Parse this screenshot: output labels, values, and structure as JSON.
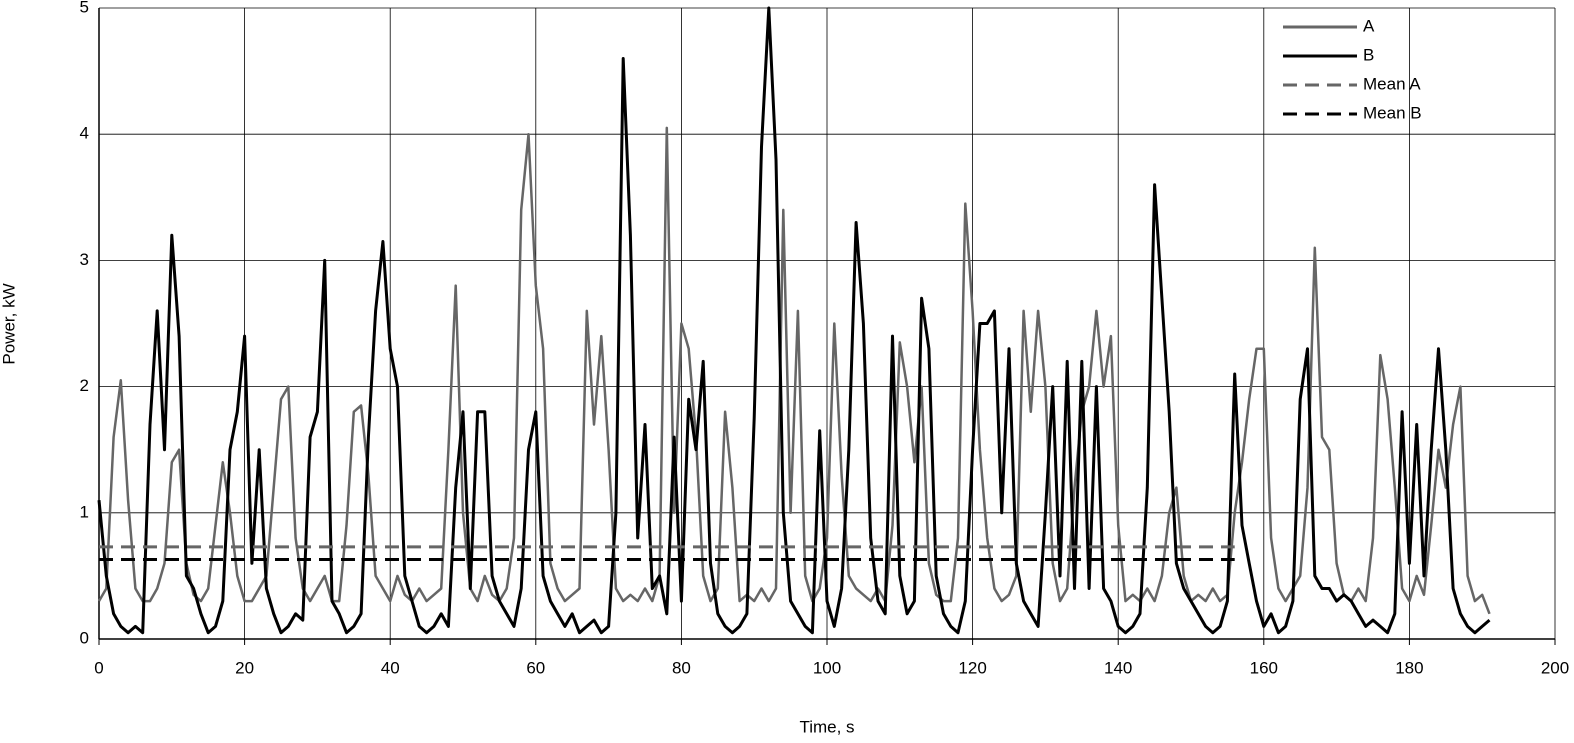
{
  "chart_data": {
    "type": "line",
    "xlabel": "Time, s",
    "ylabel": "Power, kW",
    "x": [
      0,
      1,
      2,
      3,
      4,
      5,
      6,
      7,
      8,
      9,
      10,
      11,
      12,
      13,
      14,
      15,
      16,
      17,
      18,
      19,
      20,
      21,
      22,
      23,
      24,
      25,
      26,
      27,
      28,
      29,
      30,
      31,
      32,
      33,
      34,
      35,
      36,
      37,
      38,
      39,
      40,
      41,
      42,
      43,
      44,
      45,
      46,
      47,
      48,
      49,
      50,
      51,
      52,
      53,
      54,
      55,
      56,
      57,
      58,
      59,
      60,
      61,
      62,
      63,
      64,
      65,
      66,
      67,
      68,
      69,
      70,
      71,
      72,
      73,
      74,
      75,
      76,
      77,
      78,
      79,
      80,
      81,
      82,
      83,
      84,
      85,
      86,
      87,
      88,
      89,
      90,
      91,
      92,
      93,
      94,
      95,
      96,
      97,
      98,
      99,
      100,
      101,
      102,
      103,
      104,
      105,
      106,
      107,
      108,
      109,
      110,
      111,
      112,
      113,
      114,
      115,
      116,
      117,
      118,
      119,
      120,
      121,
      122,
      123,
      124,
      125,
      126,
      127,
      128,
      129,
      130,
      131,
      132,
      133,
      134,
      135,
      136,
      137,
      138,
      139,
      140,
      141,
      142,
      143,
      144,
      145,
      146,
      147,
      148,
      149,
      150,
      151,
      152,
      153,
      154,
      155,
      156,
      157,
      158,
      159,
      160,
      161,
      162,
      163,
      164,
      165,
      166,
      167,
      168,
      169,
      170,
      171,
      172,
      173,
      174,
      175,
      176,
      177,
      178,
      179,
      180,
      181,
      182,
      183,
      184,
      185,
      186,
      187,
      188,
      189,
      190,
      191
    ],
    "series": [
      {
        "name": "A",
        "color": "#666666",
        "dash": false,
        "values": [
          0.3,
          0.4,
          1.6,
          2.05,
          1.1,
          0.4,
          0.3,
          0.3,
          0.4,
          0.6,
          1.4,
          1.5,
          0.6,
          0.35,
          0.3,
          0.4,
          0.9,
          1.4,
          1.0,
          0.5,
          0.3,
          0.3,
          0.4,
          0.5,
          1.2,
          1.9,
          2.0,
          0.8,
          0.4,
          0.3,
          0.4,
          0.5,
          0.3,
          0.3,
          0.9,
          1.8,
          1.85,
          1.3,
          0.5,
          0.4,
          0.3,
          0.5,
          0.35,
          0.3,
          0.4,
          0.3,
          0.35,
          0.4,
          1.5,
          2.8,
          1.0,
          0.4,
          0.3,
          0.5,
          0.35,
          0.3,
          0.4,
          0.8,
          3.4,
          4.0,
          2.8,
          2.3,
          0.6,
          0.4,
          0.3,
          0.35,
          0.4,
          2.6,
          1.7,
          2.4,
          1.5,
          0.4,
          0.3,
          0.35,
          0.3,
          0.4,
          0.3,
          0.5,
          4.05,
          1.0,
          2.5,
          2.3,
          1.6,
          0.5,
          0.3,
          0.4,
          1.8,
          1.2,
          0.3,
          0.35,
          0.3,
          0.4,
          0.3,
          0.4,
          3.4,
          1.0,
          2.6,
          0.5,
          0.3,
          0.4,
          0.8,
          2.5,
          1.3,
          0.5,
          0.4,
          0.35,
          0.3,
          0.4,
          0.3,
          0.9,
          2.35,
          2.0,
          1.4,
          2.0,
          0.6,
          0.35,
          0.3,
          0.3,
          0.8,
          3.45,
          2.6,
          1.5,
          0.8,
          0.4,
          0.3,
          0.35,
          0.5,
          2.6,
          1.8,
          2.6,
          2.0,
          0.6,
          0.3,
          0.4,
          1.2,
          1.8,
          2.0,
          2.6,
          2.0,
          2.4,
          0.9,
          0.3,
          0.35,
          0.3,
          0.4,
          0.3,
          0.5,
          1.0,
          1.2,
          0.5,
          0.3,
          0.35,
          0.3,
          0.4,
          0.3,
          0.35,
          1.0,
          1.4,
          1.9,
          2.3,
          2.3,
          0.8,
          0.4,
          0.3,
          0.4,
          0.5,
          1.2,
          3.1,
          1.6,
          1.5,
          0.6,
          0.35,
          0.3,
          0.4,
          0.3,
          0.8,
          2.25,
          1.9,
          1.2,
          0.4,
          0.3,
          0.5,
          0.35,
          0.9,
          1.5,
          1.2,
          1.7,
          2.0,
          0.5,
          0.3,
          0.35,
          0.2
        ]
      },
      {
        "name": "B",
        "color": "#000000",
        "dash": false,
        "values": [
          1.1,
          0.5,
          0.2,
          0.1,
          0.05,
          0.1,
          0.05,
          1.7,
          2.6,
          1.5,
          3.2,
          2.4,
          0.5,
          0.4,
          0.2,
          0.05,
          0.1,
          0.3,
          1.5,
          1.8,
          2.4,
          0.6,
          1.5,
          0.4,
          0.2,
          0.05,
          0.1,
          0.2,
          0.15,
          1.6,
          1.8,
          3.0,
          0.3,
          0.2,
          0.05,
          0.1,
          0.2,
          1.6,
          2.6,
          3.15,
          2.3,
          2.0,
          0.5,
          0.3,
          0.1,
          0.05,
          0.1,
          0.2,
          0.1,
          1.2,
          1.8,
          0.4,
          1.8,
          1.8,
          0.5,
          0.3,
          0.2,
          0.1,
          0.4,
          1.5,
          1.8,
          0.5,
          0.3,
          0.2,
          0.1,
          0.2,
          0.05,
          0.1,
          0.15,
          0.05,
          0.1,
          1.0,
          4.6,
          3.2,
          0.8,
          1.7,
          0.4,
          0.5,
          0.2,
          1.6,
          0.3,
          1.9,
          1.5,
          2.2,
          0.6,
          0.2,
          0.1,
          0.05,
          0.1,
          0.2,
          1.75,
          3.9,
          5.0,
          3.8,
          1.0,
          0.3,
          0.2,
          0.1,
          0.05,
          1.65,
          0.3,
          0.1,
          0.4,
          1.5,
          3.3,
          2.5,
          0.8,
          0.3,
          0.2,
          2.4,
          0.5,
          0.2,
          0.3,
          2.7,
          2.3,
          0.5,
          0.2,
          0.1,
          0.05,
          0.3,
          1.5,
          2.5,
          2.5,
          2.6,
          1.0,
          2.3,
          0.6,
          0.3,
          0.2,
          0.1,
          1.0,
          2.0,
          0.5,
          2.2,
          0.4,
          2.2,
          0.4,
          2.0,
          0.4,
          0.3,
          0.1,
          0.05,
          0.1,
          0.2,
          1.2,
          3.6,
          2.7,
          1.8,
          0.6,
          0.4,
          0.3,
          0.2,
          0.1,
          0.05,
          0.1,
          0.3,
          2.1,
          0.9,
          0.6,
          0.3,
          0.1,
          0.2,
          0.05,
          0.1,
          0.3,
          1.9,
          2.3,
          0.5,
          0.4,
          0.4,
          0.3,
          0.35,
          0.3,
          0.2,
          0.1,
          0.15,
          0.1,
          0.05,
          0.2,
          1.8,
          0.6,
          1.7,
          0.5,
          1.5,
          2.3,
          1.5,
          0.4,
          0.2,
          0.1,
          0.05,
          0.1,
          0.15
        ]
      },
      {
        "name": "Mean A",
        "color": "#666666",
        "dash": true,
        "x": [
          0,
          156
        ],
        "values": [
          0.73,
          0.73
        ]
      },
      {
        "name": "Mean B",
        "color": "#000000",
        "dash": true,
        "x": [
          0,
          156
        ],
        "values": [
          0.63,
          0.63
        ]
      }
    ],
    "xlim": [
      0,
      200
    ],
    "xticks": [
      0,
      20,
      40,
      60,
      80,
      100,
      120,
      140,
      160,
      180,
      200
    ],
    "ylim": [
      0,
      5
    ],
    "yticks": [
      0,
      1,
      2,
      3,
      4,
      5
    ],
    "grid": true,
    "legend": "upper right"
  }
}
